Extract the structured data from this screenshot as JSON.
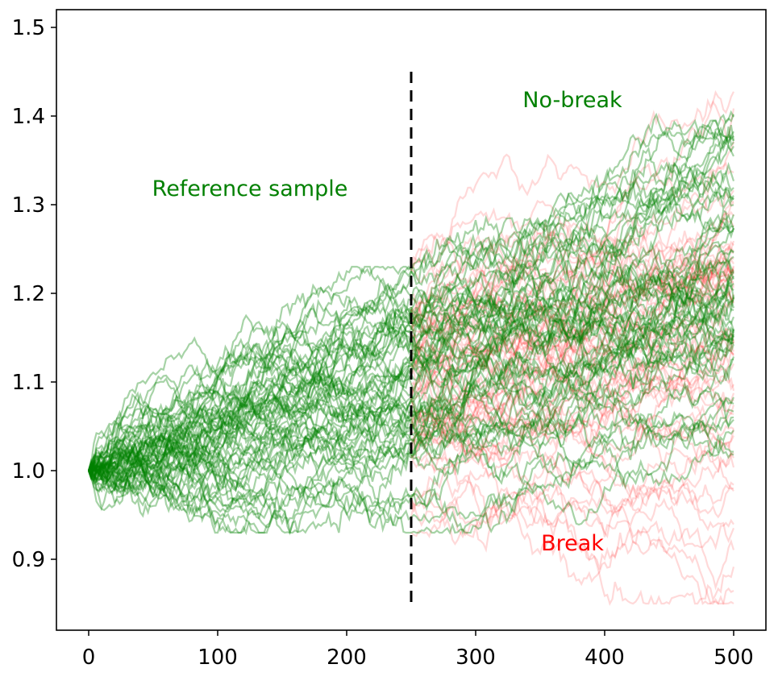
{
  "chart_data": {
    "type": "line",
    "title": "",
    "xlabel": "",
    "ylabel": "",
    "xlim": [
      -25,
      525
    ],
    "ylim": [
      0.82,
      1.52
    ],
    "xticks": [
      0,
      100,
      200,
      300,
      400,
      500
    ],
    "yticks": [
      0.9,
      1.0,
      1.1,
      1.2,
      1.3,
      1.4,
      1.5
    ],
    "xtick_labels": [
      "0",
      "100",
      "200",
      "300",
      "400",
      "500"
    ],
    "ytick_labels": [
      "0.9",
      "1.0",
      "1.1",
      "1.2",
      "1.3",
      "1.4",
      "1.5"
    ],
    "grid": false,
    "breakpoint_x": 250,
    "breakpoint_line_range": [
      0.85,
      1.45
    ],
    "series": [
      {
        "label": "Reference sample",
        "color": "#008000",
        "x_range": [
          0,
          250
        ],
        "start_value": 1.0,
        "value_range_at_end": [
          0.95,
          1.23
        ],
        "path_count": 60,
        "opacity": 0.35
      },
      {
        "label": "No-break",
        "color": "#008000",
        "x_range": [
          250,
          500
        ],
        "value_range_at_end": [
          1.05,
          1.49
        ],
        "path_count": 60,
        "opacity": 0.35
      },
      {
        "label": "Break",
        "color": "#ff0000",
        "x_range": [
          250,
          500
        ],
        "value_range_at_end": [
          0.85,
          1.43
        ],
        "path_count": 60,
        "opacity": 0.15
      }
    ],
    "annotations": [
      {
        "text": "Reference sample",
        "x": 125,
        "y": 1.31,
        "color": "#008000"
      },
      {
        "text": "No-break",
        "x": 375,
        "y": 1.41,
        "color": "#008000"
      },
      {
        "text": "Break",
        "x": 375,
        "y": 0.91,
        "color": "#ff0000"
      }
    ]
  }
}
